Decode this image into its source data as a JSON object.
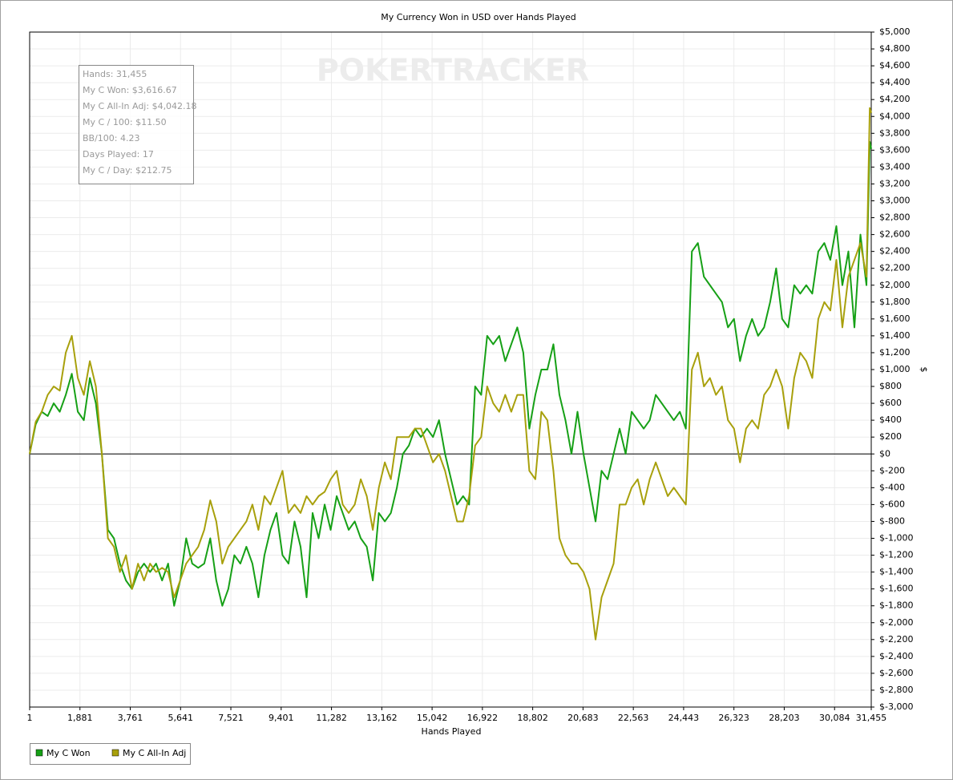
{
  "chart_data": {
    "type": "line",
    "title": "My Currency Won in USD over Hands Played",
    "x_label": "Hands Played",
    "y_label": "$",
    "watermark": "POKERTRACKER",
    "info": [
      "Hands: 31,455",
      "My C Won: $3,616.67",
      "My C All-In Adj: $4,042.18",
      "My C / 100: $11.50",
      "BB/100: 4.23",
      "Days Played: 17",
      "My C / Day: $212.75"
    ],
    "grid": true,
    "legend": "bottom-left",
    "xlim": [
      1,
      31455
    ],
    "ylim": [
      -3000,
      5000
    ],
    "xticks": [
      1,
      {
        "value": 1881,
        "label": "1,881"
      },
      {
        "value": 3761,
        "label": "3,761"
      },
      {
        "value": 5641,
        "label": "5,641"
      },
      {
        "value": 7521,
        "label": "7,521"
      },
      {
        "value": 9401,
        "label": "9,401"
      },
      {
        "value": 11282,
        "label": "11,282"
      },
      {
        "value": 13162,
        "label": "13,162"
      },
      {
        "value": 15042,
        "label": "15,042"
      },
      {
        "value": 16922,
        "label": "16,922"
      },
      {
        "value": 18802,
        "label": "18,802"
      },
      {
        "value": 20683,
        "label": "20,683"
      },
      {
        "value": 22563,
        "label": "22,563"
      },
      {
        "value": 24443,
        "label": "24,443"
      },
      {
        "value": 26323,
        "label": "26,323"
      },
      {
        "value": 28203,
        "label": "28,203"
      },
      {
        "value": 30084,
        "label": "30,084"
      },
      {
        "value": 31455,
        "label": "31,455"
      }
    ],
    "yticks": [
      {
        "value": 5000,
        "label": "$5,000"
      },
      {
        "value": 4800,
        "label": "$4,800"
      },
      {
        "value": 4600,
        "label": "$4,600"
      },
      {
        "value": 4400,
        "label": "$4,400"
      },
      {
        "value": 4200,
        "label": "$4,200"
      },
      {
        "value": 4000,
        "label": "$4,000"
      },
      {
        "value": 3800,
        "label": "$3,800"
      },
      {
        "value": 3600,
        "label": "$3,600"
      },
      {
        "value": 3400,
        "label": "$3,400"
      },
      {
        "value": 3200,
        "label": "$3,200"
      },
      {
        "value": 3000,
        "label": "$3,000"
      },
      {
        "value": 2800,
        "label": "$2,800"
      },
      {
        "value": 2600,
        "label": "$2,600"
      },
      {
        "value": 2400,
        "label": "$2,400"
      },
      {
        "value": 2200,
        "label": "$2,200"
      },
      {
        "value": 2000,
        "label": "$2,000"
      },
      {
        "value": 1800,
        "label": "$1,800"
      },
      {
        "value": 1600,
        "label": "$1,600"
      },
      {
        "value": 1400,
        "label": "$1,400"
      },
      {
        "value": 1200,
        "label": "$1,200"
      },
      {
        "value": 1000,
        "label": "$1,000"
      },
      {
        "value": 800,
        "label": "$800"
      },
      {
        "value": 600,
        "label": "$600"
      },
      {
        "value": 400,
        "label": "$400"
      },
      {
        "value": 200,
        "label": "$200"
      },
      {
        "value": 0,
        "label": "$0"
      },
      {
        "value": -200,
        "label": "$-200"
      },
      {
        "value": -400,
        "label": "$-400"
      },
      {
        "value": -600,
        "label": "$-600"
      },
      {
        "value": -800,
        "label": "$-800"
      },
      {
        "value": -1000,
        "label": "$-1,000"
      },
      {
        "value": -1200,
        "label": "$-1,200"
      },
      {
        "value": -1400,
        "label": "$-1,400"
      },
      {
        "value": -1600,
        "label": "$-1,600"
      },
      {
        "value": -1800,
        "label": "$-1,800"
      },
      {
        "value": -2000,
        "label": "$-2,000"
      },
      {
        "value": -2200,
        "label": "$-2,200"
      },
      {
        "value": -2400,
        "label": "$-2,400"
      },
      {
        "value": -2600,
        "label": "$-2,600"
      },
      {
        "value": -2800,
        "label": "$-2,800"
      },
      {
        "value": -3000,
        "label": "$-3,000"
      }
    ],
    "x": [
      1,
      226,
      451,
      676,
      901,
      1126,
      1351,
      1576,
      1801,
      2026,
      2251,
      2476,
      2701,
      2926,
      3151,
      3376,
      3601,
      3826,
      4051,
      4276,
      4501,
      4726,
      4951,
      5176,
      5401,
      5626,
      5851,
      6076,
      6301,
      6526,
      6751,
      6976,
      7201,
      7426,
      7651,
      7876,
      8101,
      8326,
      8551,
      8776,
      9001,
      9226,
      9451,
      9676,
      9901,
      10126,
      10351,
      10576,
      10801,
      11026,
      11251,
      11476,
      11701,
      11926,
      12151,
      12376,
      12601,
      12826,
      13051,
      13276,
      13501,
      13726,
      13951,
      14176,
      14401,
      14626,
      14851,
      15076,
      15301,
      15526,
      15751,
      15976,
      16201,
      16426,
      16651,
      16876,
      17101,
      17326,
      17551,
      17776,
      18001,
      18226,
      18451,
      18676,
      18901,
      19126,
      19351,
      19576,
      19801,
      20026,
      20251,
      20476,
      20701,
      20926,
      21151,
      21376,
      21601,
      21826,
      22051,
      22276,
      22501,
      22726,
      22951,
      23176,
      23401,
      23626,
      23851,
      24076,
      24301,
      24526,
      24751,
      24976,
      25201,
      25426,
      25651,
      25876,
      26101,
      26326,
      26551,
      26776,
      27001,
      27226,
      27451,
      27676,
      27901,
      28126,
      28351,
      28576,
      28801,
      29026,
      29251,
      29476,
      29701,
      29926,
      30151,
      30376,
      30601,
      30826,
      31051,
      31276,
      31400,
      31455
    ],
    "series": [
      {
        "name": "My C Won",
        "color": "#16a016",
        "values": [
          0,
          350,
          500,
          450,
          600,
          500,
          700,
          950,
          500,
          400,
          900,
          600,
          0,
          -900,
          -1000,
          -1300,
          -1500,
          -1600,
          -1400,
          -1300,
          -1400,
          -1300,
          -1500,
          -1300,
          -1800,
          -1500,
          -1000,
          -1300,
          -1350,
          -1300,
          -1000,
          -1500,
          -1800,
          -1600,
          -1200,
          -1300,
          -1100,
          -1300,
          -1700,
          -1200,
          -900,
          -700,
          -1200,
          -1300,
          -800,
          -1100,
          -1700,
          -700,
          -1000,
          -600,
          -900,
          -500,
          -700,
          -900,
          -800,
          -1000,
          -1100,
          -1500,
          -700,
          -800,
          -700,
          -400,
          0,
          100,
          300,
          200,
          300,
          200,
          400,
          0,
          -300,
          -600,
          -500,
          -600,
          800,
          700,
          1400,
          1300,
          1400,
          1100,
          1300,
          1500,
          1200,
          300,
          700,
          1000,
          1000,
          1300,
          700,
          400,
          0,
          500,
          0,
          -400,
          -800,
          -200,
          -300,
          0,
          300,
          0,
          500,
          400,
          300,
          400,
          700,
          600,
          500,
          400,
          500,
          300,
          2400,
          2500,
          2100,
          2000,
          1900,
          1800,
          1500,
          1600,
          1100,
          1400,
          1600,
          1400,
          1500,
          1800,
          2200,
          1600,
          1500,
          2000,
          1900,
          2000,
          1900,
          2400,
          2500,
          2300,
          2700,
          2000,
          2400,
          1500,
          2600,
          2000,
          3700,
          3616.67
        ]
      },
      {
        "name": "My C All-In Adj",
        "color": "#a8a00c",
        "values": [
          0,
          380,
          500,
          700,
          800,
          750,
          1200,
          1400,
          900,
          700,
          1100,
          800,
          0,
          -1000,
          -1100,
          -1400,
          -1200,
          -1600,
          -1300,
          -1500,
          -1300,
          -1400,
          -1350,
          -1400,
          -1700,
          -1500,
          -1300,
          -1200,
          -1100,
          -900,
          -550,
          -800,
          -1300,
          -1100,
          -1000,
          -900,
          -800,
          -600,
          -900,
          -500,
          -600,
          -400,
          -200,
          -700,
          -600,
          -700,
          -500,
          -600,
          -500,
          -450,
          -300,
          -200,
          -600,
          -700,
          -600,
          -300,
          -500,
          -900,
          -400,
          -100,
          -300,
          200,
          200,
          200,
          300,
          300,
          100,
          -100,
          0,
          -200,
          -500,
          -800,
          -800,
          -500,
          100,
          200,
          800,
          600,
          500,
          700,
          500,
          700,
          700,
          -200,
          -300,
          500,
          400,
          -200,
          -1000,
          -1200,
          -1300,
          -1300,
          -1400,
          -1600,
          -2200,
          -1700,
          -1500,
          -1300,
          -600,
          -600,
          -400,
          -300,
          -600,
          -300,
          -100,
          -300,
          -500,
          -400,
          -500,
          -600,
          1000,
          1200,
          800,
          900,
          700,
          800,
          400,
          300,
          -100,
          300,
          400,
          300,
          700,
          800,
          1000,
          800,
          300,
          900,
          1200,
          1100,
          900,
          1600,
          1800,
          1700,
          2300,
          1500,
          2100,
          2300,
          2500,
          2100,
          4100,
          4042.18
        ]
      }
    ]
  }
}
